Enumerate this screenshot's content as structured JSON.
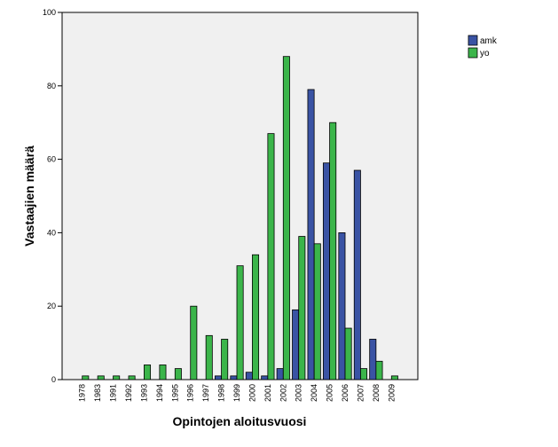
{
  "chart_data": {
    "type": "bar",
    "title": "",
    "xlabel": "Opintojen aloitusvuosi",
    "ylabel": "Vastaajien määrä",
    "categories": [
      "1978",
      "1983",
      "1991",
      "1992",
      "1993",
      "1994",
      "1995",
      "1996",
      "1997",
      "1998",
      "1999",
      "2000",
      "2001",
      "2002",
      "2003",
      "2004",
      "2005",
      "2006",
      "2007",
      "2008",
      "2009"
    ],
    "series": [
      {
        "name": "amk",
        "color": "#3a53a4",
        "values": [
          0,
          0,
          0,
          0,
          0,
          0,
          0,
          0,
          0,
          1,
          1,
          2,
          1,
          3,
          19,
          79,
          59,
          40,
          57,
          11,
          0
        ]
      },
      {
        "name": "yo",
        "color": "#3bb54a",
        "values": [
          1,
          1,
          1,
          1,
          4,
          4,
          3,
          20,
          12,
          11,
          31,
          34,
          67,
          88,
          39,
          37,
          70,
          14,
          3,
          5,
          1
        ]
      }
    ],
    "ylim": [
      0,
      100
    ],
    "yticks": [
      0,
      20,
      40,
      60,
      80,
      100
    ],
    "grid": false,
    "legend_position": "top-right",
    "plot_background": "#f0f0f0"
  }
}
